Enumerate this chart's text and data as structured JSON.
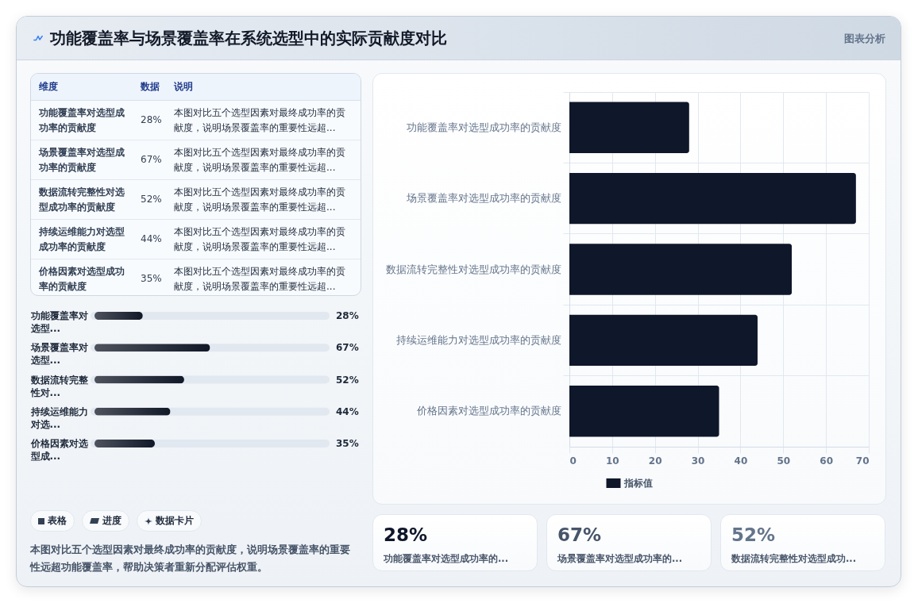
{
  "chart_data": [
    {
      "type": "other",
      "title": "功能覆盖率与场景覆盖率在系统选型中的实际贡献度对比",
      "annotations": [
        "图表分析"
      ]
    },
    {
      "type": "other",
      "categories": [
        "功能覆盖率对选型成功率的贡献度",
        "场景覆盖率对选型成功率的贡献度",
        "数据流转完整性对选型成功率的贡献度",
        "持续运维能力对选型成功率的贡献度",
        "价格因素对选型成功率的贡献度"
      ],
      "value_labels": [
        "28%",
        "67%",
        "52%",
        "44%",
        "35%"
      ],
      "annotations": [
        "维度",
        "数据",
        "说明",
        "本图对比五个选型因素对最终成功率的贡献度，说明场景覆盖率的重要性远超...",
        "本图对比五个选型因素对最终成功率的贡献度，说明场景覆盖率的重要性远超...",
        "本图对比五个选型因素对最终成功率的贡献度，说明场景覆盖率的重要性远超...",
        "本图对比五个选型因素对最终成功率的贡献度，说明场景覆盖率的重要性远超...",
        "本图对比五个选型因素对最终成功率的贡献度，说明场景覆盖率的重要性远超..."
      ]
    },
    {
      "type": "bar",
      "orientation": "horizontal",
      "categories": [
        "功能覆盖率对选型...",
        "场景覆盖率对选型...",
        "数据流转完整性对...",
        "持续运维能力对选...",
        "价格因素对选型成..."
      ],
      "values": [
        28,
        67,
        52,
        44,
        35
      ],
      "value_labels": [
        "28%",
        "67%",
        "52%",
        "44%",
        "35%"
      ],
      "color": "#111827",
      "xlim": [
        0,
        134
      ],
      "tick_labels": "y"
    },
    {
      "type": "other",
      "annotations": [
        "表格",
        "进度",
        "数据卡片",
        "本图对比五个选型因素对最终成功率的贡献度，说明场景覆盖率的重要性远超功能覆盖率，帮助决策者重新分配评估权重。"
      ]
    },
    {
      "type": "bar",
      "orientation": "horizontal",
      "categories": [
        "功能覆盖率对选型成功率的贡献度",
        "场景覆盖率对选型成功率的贡献度",
        "数据流转完整性对选型成功率的贡献度",
        "持续运维能力对选型成功率的贡献度",
        "价格因素对选型成功率的贡献度"
      ],
      "series": [
        {
          "name": "指标值",
          "color": "#0f172a",
          "values": [
            28,
            67,
            52,
            44,
            35
          ]
        }
      ],
      "xlim": [
        0,
        70
      ],
      "xticks": [
        0,
        10,
        20,
        30,
        40,
        50,
        60,
        70
      ],
      "grid": true,
      "legend": "bottom"
    },
    {
      "type": "other",
      "categories": [
        "功能覆盖率对选型成功率的...",
        "场景覆盖率对选型成功率的...",
        "数据流转完整性对选型成功..."
      ],
      "value_labels": [
        "28%",
        "67%",
        "52%"
      ]
    }
  ]
}
